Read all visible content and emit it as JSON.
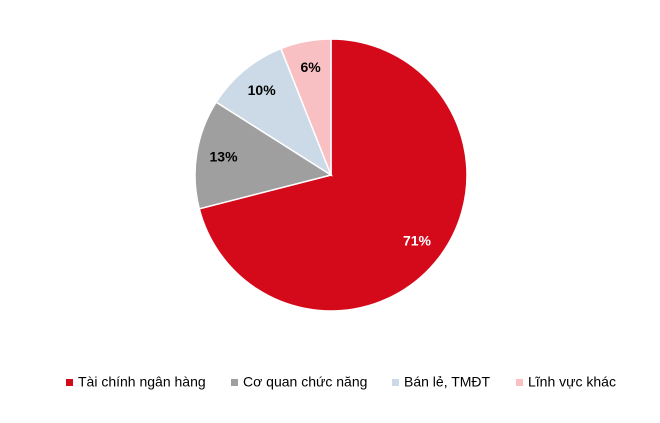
{
  "chart_data": {
    "type": "pie",
    "categories": [
      "Tài chính ngân hàng",
      "Cơ quan chức năng",
      "Bán lẻ, TMĐT",
      "Lĩnh vực khác"
    ],
    "values": [
      71,
      13,
      10,
      6
    ],
    "value_labels": [
      "71%",
      "13%",
      "10%",
      "6%"
    ],
    "colors": [
      "#d40a1a",
      "#a09fa0",
      "#ccdae8",
      "#f9c0c4"
    ],
    "label_colors": [
      "#ffffff",
      "#000000",
      "#000000",
      "#000000"
    ],
    "legend": "bottom"
  }
}
